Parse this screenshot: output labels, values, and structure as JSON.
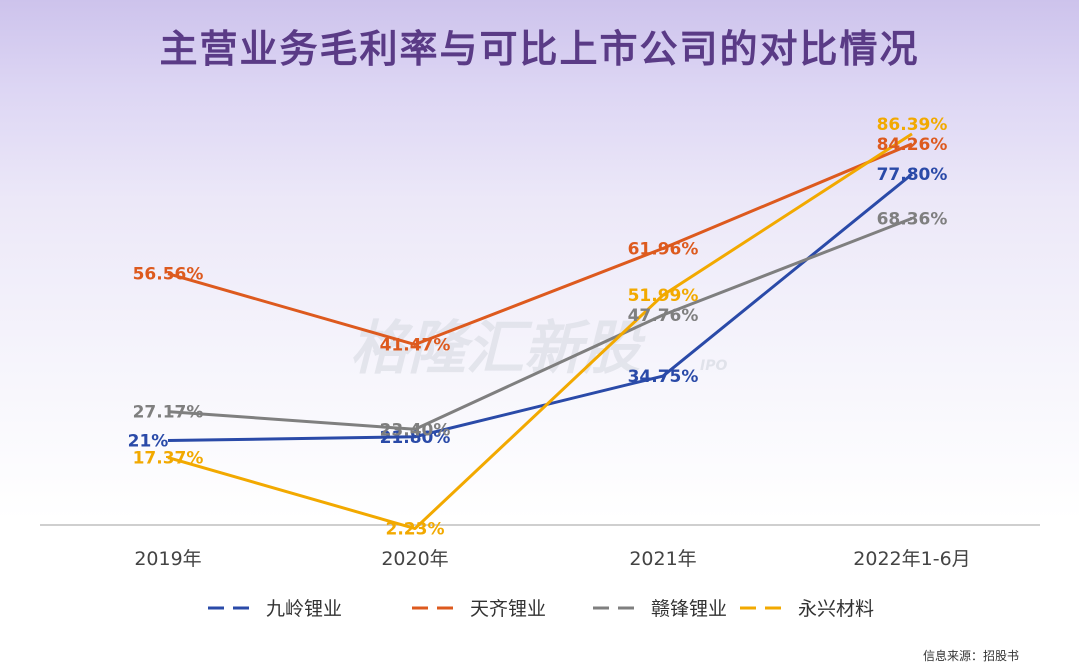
{
  "title": "主营业务毛利率与可比上市公司的对比情况",
  "source": "信息来源：招股书",
  "watermark": {
    "main": "格隆汇新股",
    "sub": "IPO"
  },
  "chart_data": {
    "type": "line",
    "title": "主营业务毛利率与可比上市公司的对比情况",
    "categories": [
      "2019年",
      "2020年",
      "2021年",
      "2022年1-6月"
    ],
    "ylim": [
      0,
      100
    ],
    "grid": false,
    "legend": "bottom",
    "series": [
      {
        "name": "九岭锂业",
        "color": "#2a4aa8",
        "values": [
          21,
          21.8,
          34.75,
          77.8
        ],
        "labels": [
          "21%",
          "21.80%",
          "34.75%",
          "77.80%"
        ]
      },
      {
        "name": "天齐锂业",
        "color": "#dd5a1e",
        "values": [
          56.56,
          41.47,
          61.96,
          84.26
        ],
        "labels": [
          "56.56%",
          "41.47%",
          "61.96%",
          "84.26%"
        ]
      },
      {
        "name": "赣锋锂业",
        "color": "#7f7f7f",
        "values": [
          27.17,
          23.4,
          47.76,
          68.36
        ],
        "labels": [
          "27.17%",
          "23.40%",
          "47.76%",
          "68.36%"
        ]
      },
      {
        "name": "永兴材料",
        "color": "#f2a900",
        "values": [
          17.37,
          2.23,
          51.99,
          86.39
        ],
        "labels": [
          "17.37%",
          "2.23%",
          "51.99%",
          "86.39%"
        ]
      }
    ]
  }
}
